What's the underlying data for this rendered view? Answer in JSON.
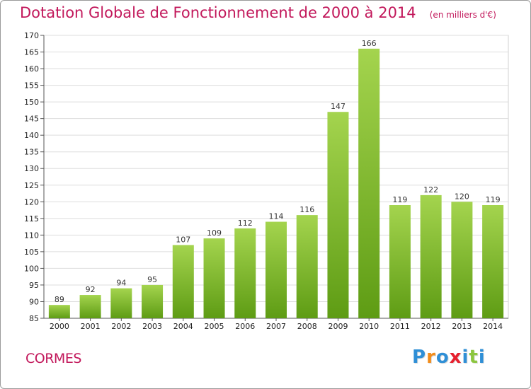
{
  "chart_data": {
    "type": "bar",
    "title": "Dotation Globale de Fonctionnement de 2000 à 2014",
    "subtitle": "(en milliers d'€)",
    "categories": [
      "2000",
      "2001",
      "2002",
      "2003",
      "2004",
      "2005",
      "2006",
      "2007",
      "2008",
      "2009",
      "2010",
      "2011",
      "2012",
      "2013",
      "2014"
    ],
    "values": [
      89,
      92,
      94,
      95,
      107,
      109,
      112,
      114,
      116,
      147,
      166,
      119,
      122,
      120,
      119
    ],
    "ylim": [
      85,
      170
    ],
    "yticks": [
      85,
      90,
      95,
      100,
      105,
      110,
      115,
      120,
      125,
      130,
      135,
      140,
      145,
      150,
      155,
      160,
      165,
      170
    ],
    "grid": true,
    "bar_color_light": "#a4d44e",
    "bar_color_dark": "#5e9c14"
  },
  "footer": {
    "commune": "CORMES",
    "brand_letters": [
      "P",
      "r",
      "o",
      "x",
      "i",
      "t",
      "i"
    ],
    "brand_colors": [
      "#2f8fd6",
      "#f28c1a",
      "#2f8fd6",
      "#e6202e",
      "#2f8fd6",
      "#8cc63f",
      "#2f8fd6"
    ]
  }
}
